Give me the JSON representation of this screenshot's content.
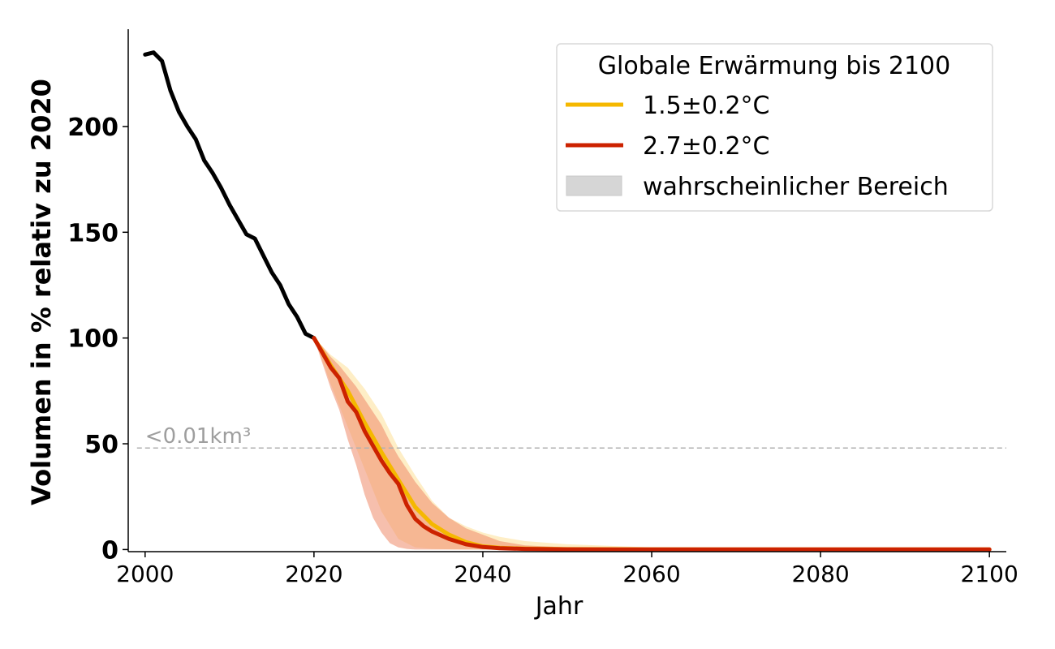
{
  "chart_data": {
    "type": "line",
    "title": "",
    "xlabel": "Jahr",
    "ylabel": "Volumen in % relativ zu 2020",
    "xlim": [
      1998,
      2102
    ],
    "ylim": [
      -1,
      246
    ],
    "xticks": [
      2000,
      2020,
      2040,
      2060,
      2080,
      2100
    ],
    "yticks": [
      0,
      50,
      100,
      150,
      200
    ],
    "grid": false,
    "reference_line": {
      "y": 48,
      "label": "<0.01km³",
      "color": "#b0b0b0"
    },
    "historical": {
      "color": "#000000",
      "x": [
        2000,
        2001,
        2002,
        2003,
        2004,
        2005,
        2006,
        2007,
        2008,
        2009,
        2010,
        2011,
        2012,
        2013,
        2014,
        2015,
        2016,
        2017,
        2018,
        2019,
        2020
      ],
      "y": [
        234,
        235,
        231,
        217,
        207,
        200,
        194,
        184,
        178,
        171,
        163,
        156,
        149,
        147,
        139,
        131,
        125,
        116,
        110,
        102,
        100
      ]
    },
    "series": [
      {
        "name": "1.5±0.2°C",
        "color": "#f5b800",
        "band_color": "#fde3a0",
        "x": [
          2020,
          2022,
          2024,
          2026,
          2028,
          2030,
          2032,
          2034,
          2036,
          2038,
          2040,
          2042,
          2045,
          2050,
          2060,
          2070,
          2080,
          2090,
          2100
        ],
        "y": [
          100,
          87,
          75,
          60,
          46,
          33,
          20,
          12,
          7,
          3.5,
          1.5,
          0.8,
          0.4,
          0.2,
          0.1,
          0.05,
          0.05,
          0.05,
          0.05
        ],
        "lower": [
          100,
          78,
          58,
          38,
          18,
          5,
          1,
          0.3,
          0.1,
          0,
          0,
          0,
          0,
          0,
          0,
          0,
          0,
          0,
          0
        ],
        "upper": [
          100,
          92,
          86,
          76,
          64,
          48,
          35,
          23,
          15,
          11,
          8,
          6,
          4,
          2.5,
          1,
          0.5,
          0.3,
          0.2,
          0.2
        ]
      },
      {
        "name": "2.7±0.2°C",
        "color": "#cc2200",
        "band_color": "#ee8a6a",
        "x": [
          2020,
          2021,
          2022,
          2023,
          2024,
          2025,
          2026,
          2027,
          2028,
          2029,
          2030,
          2031,
          2032,
          2033,
          2034,
          2036,
          2038,
          2040,
          2042,
          2045,
          2050,
          2060,
          2070,
          2080,
          2090,
          2100
        ],
        "y": [
          100,
          93,
          86,
          81,
          70,
          65,
          56,
          49,
          42,
          36,
          31,
          21,
          14.5,
          11,
          8.5,
          5,
          2.5,
          1.2,
          0.6,
          0.3,
          0.1,
          0.05,
          0.02,
          0.02,
          0.02,
          0.02
        ],
        "lower": [
          100,
          88,
          76,
          66,
          52,
          40,
          26,
          15,
          8,
          3,
          1,
          0.3,
          0,
          0,
          0,
          0,
          0,
          0,
          0,
          0,
          0,
          0,
          0,
          0,
          0,
          0
        ],
        "upper": [
          100,
          96,
          91,
          87,
          82,
          77,
          71,
          65,
          59,
          51,
          44,
          38,
          32,
          27,
          22,
          15,
          10,
          7,
          4,
          2,
          1,
          0.4,
          0.2,
          0.1,
          0.1,
          0.1
        ]
      }
    ],
    "legend": {
      "title": "Globale Erwärmung bis 2100",
      "position": "top-right",
      "band_label": "wahrscheinlicher Bereich",
      "band_swatch_color": "#d6d6d6"
    }
  }
}
